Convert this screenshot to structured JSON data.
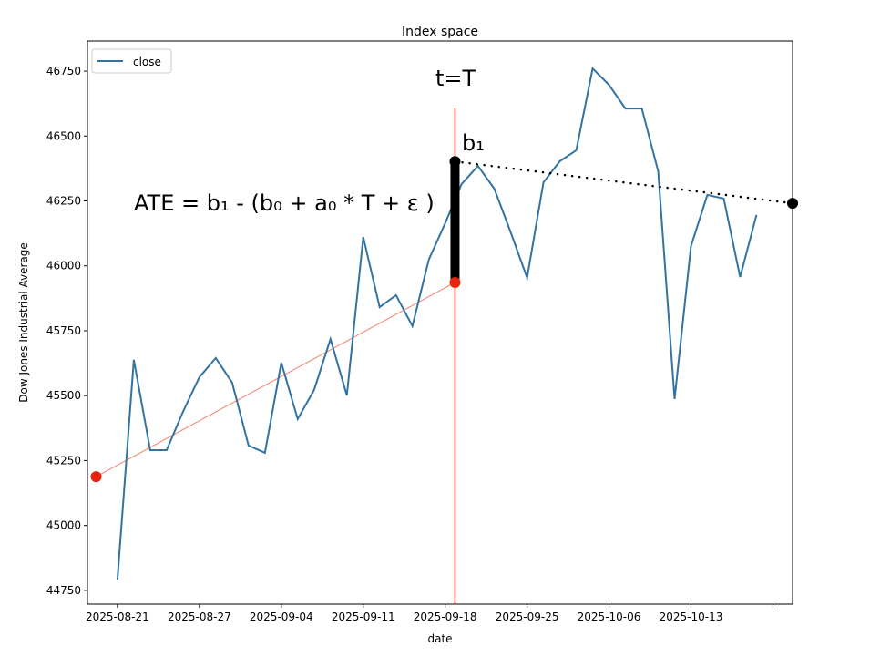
{
  "chart_data": {
    "type": "line",
    "title": "Index space",
    "xlabel": "date",
    "ylabel": "Dow Jones Industrial Average",
    "legend": {
      "entries": [
        "close"
      ],
      "placement": "top-left"
    },
    "grid": false,
    "x_index_range": [
      -1.83,
      41.2
    ],
    "ylim": [
      44697,
      46866
    ],
    "yticks": [
      44750,
      45000,
      45250,
      45500,
      45750,
      46000,
      46250,
      46500,
      46750
    ],
    "xticks": [
      {
        "index": 0,
        "label": "2025-08-21"
      },
      {
        "index": 5,
        "label": "2025-08-27"
      },
      {
        "index": 10,
        "label": "2025-09-04"
      },
      {
        "index": 15,
        "label": "2025-09-11"
      },
      {
        "index": 20,
        "label": "2025-09-18"
      },
      {
        "index": 25,
        "label": "2025-09-25"
      },
      {
        "index": 30,
        "label": "2025-10-06"
      },
      {
        "index": 35,
        "label": "2025-10-13"
      },
      {
        "index": 40,
        "label": ""
      }
    ],
    "series": [
      {
        "name": "close",
        "color": "#3274a1",
        "values": [
          44792,
          45638,
          45290,
          45290,
          45438,
          45571,
          45645,
          45550,
          45308,
          45280,
          45627,
          45410,
          45522,
          45718,
          45501,
          46111,
          45841,
          45887,
          45768,
          46024,
          46164,
          46315,
          46385,
          46297,
          46129,
          45954,
          46322,
          46403,
          46445,
          46760,
          46697,
          46606,
          46606,
          46364,
          45487,
          46076,
          46273,
          46259,
          45957,
          46196
        ]
      }
    ],
    "annotations": {
      "treatment_index": 20.6,
      "pre_trend": {
        "start": [
          -1.3,
          45188
        ],
        "end": [
          20.6,
          45936
        ],
        "color": "#f08070"
      },
      "counterfactual_value": 45936,
      "b1_value": 46402,
      "post_trend_end": [
        41.2,
        46241
      ],
      "t_label": "t=T",
      "b1_label": "b₁",
      "ate_label": "ATE = b₁ - (b₀ + a₀ * T +  ε )"
    }
  }
}
